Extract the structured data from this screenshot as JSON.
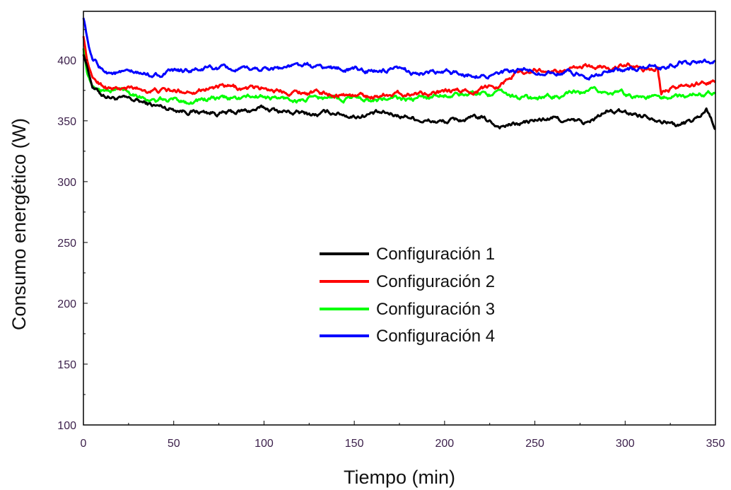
{
  "chart_data": {
    "type": "line",
    "xlabel": "Tiempo (min)",
    "ylabel": "Consumo energético (W)",
    "xlim": [
      0,
      350
    ],
    "ylim": [
      100,
      440
    ],
    "xticks": [
      0,
      50,
      100,
      150,
      200,
      250,
      300,
      350
    ],
    "yticks": [
      100,
      150,
      200,
      250,
      300,
      350,
      400
    ],
    "grid": false,
    "legend": "center",
    "series": [
      {
        "name": "Configuración 1",
        "color": "#000000",
        "x": [
          0,
          2,
          5,
          10,
          15,
          20,
          30,
          40,
          50,
          60,
          70,
          80,
          90,
          100,
          110,
          120,
          130,
          140,
          150,
          160,
          170,
          180,
          190,
          200,
          210,
          220,
          230,
          240,
          250,
          260,
          270,
          280,
          290,
          300,
          310,
          320,
          330,
          340,
          345,
          350
        ],
        "y": [
          405,
          395,
          378,
          372,
          370,
          368,
          366,
          362,
          360,
          358,
          357,
          356,
          358,
          360,
          358,
          356,
          355,
          357,
          354,
          356,
          355,
          354,
          350,
          349,
          351,
          352,
          346,
          347,
          350,
          352,
          349,
          348,
          358,
          356,
          355,
          352,
          346,
          352,
          360,
          345
        ]
      },
      {
        "name": "Configuración 2",
        "color": "#ff0000",
        "x": [
          0,
          2,
          5,
          10,
          15,
          20,
          30,
          40,
          50,
          60,
          70,
          80,
          90,
          100,
          110,
          120,
          130,
          140,
          150,
          160,
          170,
          180,
          190,
          200,
          210,
          220,
          230,
          240,
          250,
          260,
          270,
          280,
          290,
          300,
          310,
          318,
          320,
          330,
          340,
          350
        ],
        "y": [
          420,
          400,
          385,
          380,
          377,
          376,
          376,
          375,
          374,
          375,
          378,
          377,
          376,
          377,
          375,
          374,
          373,
          372,
          371,
          370,
          373,
          372,
          374,
          373,
          374,
          376,
          380,
          390,
          392,
          390,
          391,
          395,
          394,
          395,
          393,
          394,
          372,
          378,
          380,
          382
        ]
      },
      {
        "name": "Configuración 3",
        "color": "#00ff00",
        "x": [
          0,
          2,
          5,
          10,
          15,
          20,
          30,
          40,
          50,
          60,
          70,
          80,
          90,
          100,
          110,
          120,
          130,
          140,
          150,
          160,
          170,
          180,
          190,
          200,
          210,
          220,
          230,
          240,
          250,
          260,
          270,
          280,
          290,
          300,
          310,
          320,
          330,
          340,
          350
        ],
        "y": [
          410,
          390,
          378,
          375,
          375,
          376,
          372,
          366,
          367,
          366,
          368,
          368,
          369,
          370,
          368,
          367,
          368,
          368,
          369,
          368,
          368,
          367,
          369,
          372,
          371,
          373,
          372,
          370,
          368,
          370,
          372,
          373,
          374,
          372,
          370,
          369,
          370,
          372,
          375
        ]
      },
      {
        "name": "Configuración 4",
        "color": "#0000ff",
        "x": [
          0,
          1,
          3,
          5,
          8,
          10,
          15,
          20,
          30,
          40,
          50,
          60,
          70,
          80,
          90,
          100,
          110,
          120,
          130,
          140,
          150,
          160,
          170,
          180,
          190,
          200,
          210,
          220,
          230,
          240,
          250,
          260,
          270,
          280,
          290,
          300,
          310,
          320,
          330,
          340,
          350
        ],
        "y": [
          435,
          428,
          410,
          400,
          395,
          392,
          390,
          389,
          388,
          388,
          390,
          391,
          393,
          392,
          391,
          393,
          394,
          395,
          394,
          393,
          392,
          391,
          391,
          390,
          389,
          389,
          389,
          388,
          388,
          390,
          391,
          390,
          389,
          388,
          390,
          392,
          393,
          393,
          398,
          399,
          400
        ]
      }
    ]
  }
}
